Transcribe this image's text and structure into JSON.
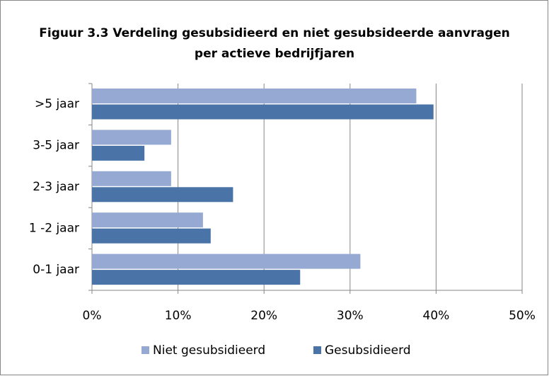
{
  "chart_data": {
    "type": "bar",
    "orientation": "horizontal",
    "title": "Figuur 3.3 Verdeling gesubsidieerd en niet gesubsideerde aanvragen per actieve bedrijfjaren",
    "categories": [
      ">5 jaar",
      "3-5 jaar",
      "2-3 jaar",
      "1 -2 jaar",
      "0-1 jaar"
    ],
    "series": [
      {
        "name": "Niet gesubsidieerd",
        "color": "#95a9d3",
        "values": [
          37.7,
          9.2,
          9.2,
          12.9,
          31.2
        ]
      },
      {
        "name": "Gesubsidieerd",
        "color": "#4a74a8",
        "values": [
          39.7,
          6.1,
          16.4,
          13.8,
          24.2
        ]
      }
    ],
    "xlim": [
      0,
      50
    ],
    "xticks": [
      {
        "value": 0,
        "label": "0%"
      },
      {
        "value": 10,
        "label": "10%"
      },
      {
        "value": 20,
        "label": "20%"
      },
      {
        "value": 30,
        "label": "30%"
      },
      {
        "value": 40,
        "label": "40%"
      },
      {
        "value": 50,
        "label": "50%"
      }
    ],
    "grid": true,
    "legend": "bottom"
  }
}
